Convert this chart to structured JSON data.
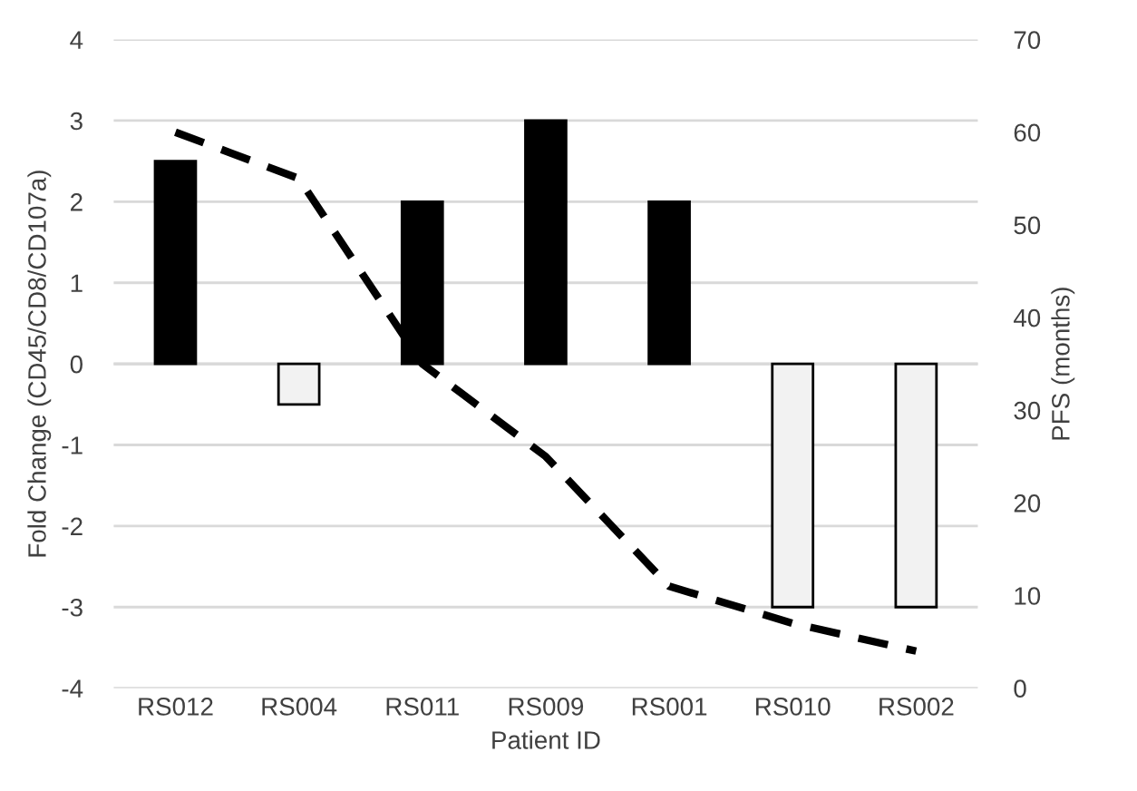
{
  "chart_data": {
    "type": "bar",
    "xlabel": "Patient ID",
    "ylabel": "Fold Change (CD45/CD8/CD107a)",
    "y2label": "PFS (months)",
    "categories": [
      "RS012",
      "RS004",
      "RS011",
      "RS009",
      "RS001",
      "RS010",
      "RS002"
    ],
    "series": [
      {
        "colors": [
          "#000000",
          "#f2f2f2",
          "#000000",
          "#000000",
          "#000000",
          "#f2f2f2",
          "#f2f2f2"
        ],
        "values": [
          2.5,
          -0.5,
          2,
          3,
          2,
          -3,
          -3
        ]
      },
      {
        "type": "line",
        "axis": "y2",
        "color": "#000000",
        "line_style": "dashed",
        "values": [
          60,
          55,
          35,
          25,
          11,
          7,
          4
        ]
      }
    ],
    "ylim": [
      -4,
      4
    ],
    "yticks": [
      -4,
      -3,
      -2,
      -1,
      0,
      1,
      2,
      3,
      4
    ],
    "y2lim": [
      0,
      70
    ],
    "y2ticks": [
      0,
      10,
      20,
      30,
      40,
      50,
      60,
      70
    ],
    "grid": "y",
    "legend": false
  }
}
